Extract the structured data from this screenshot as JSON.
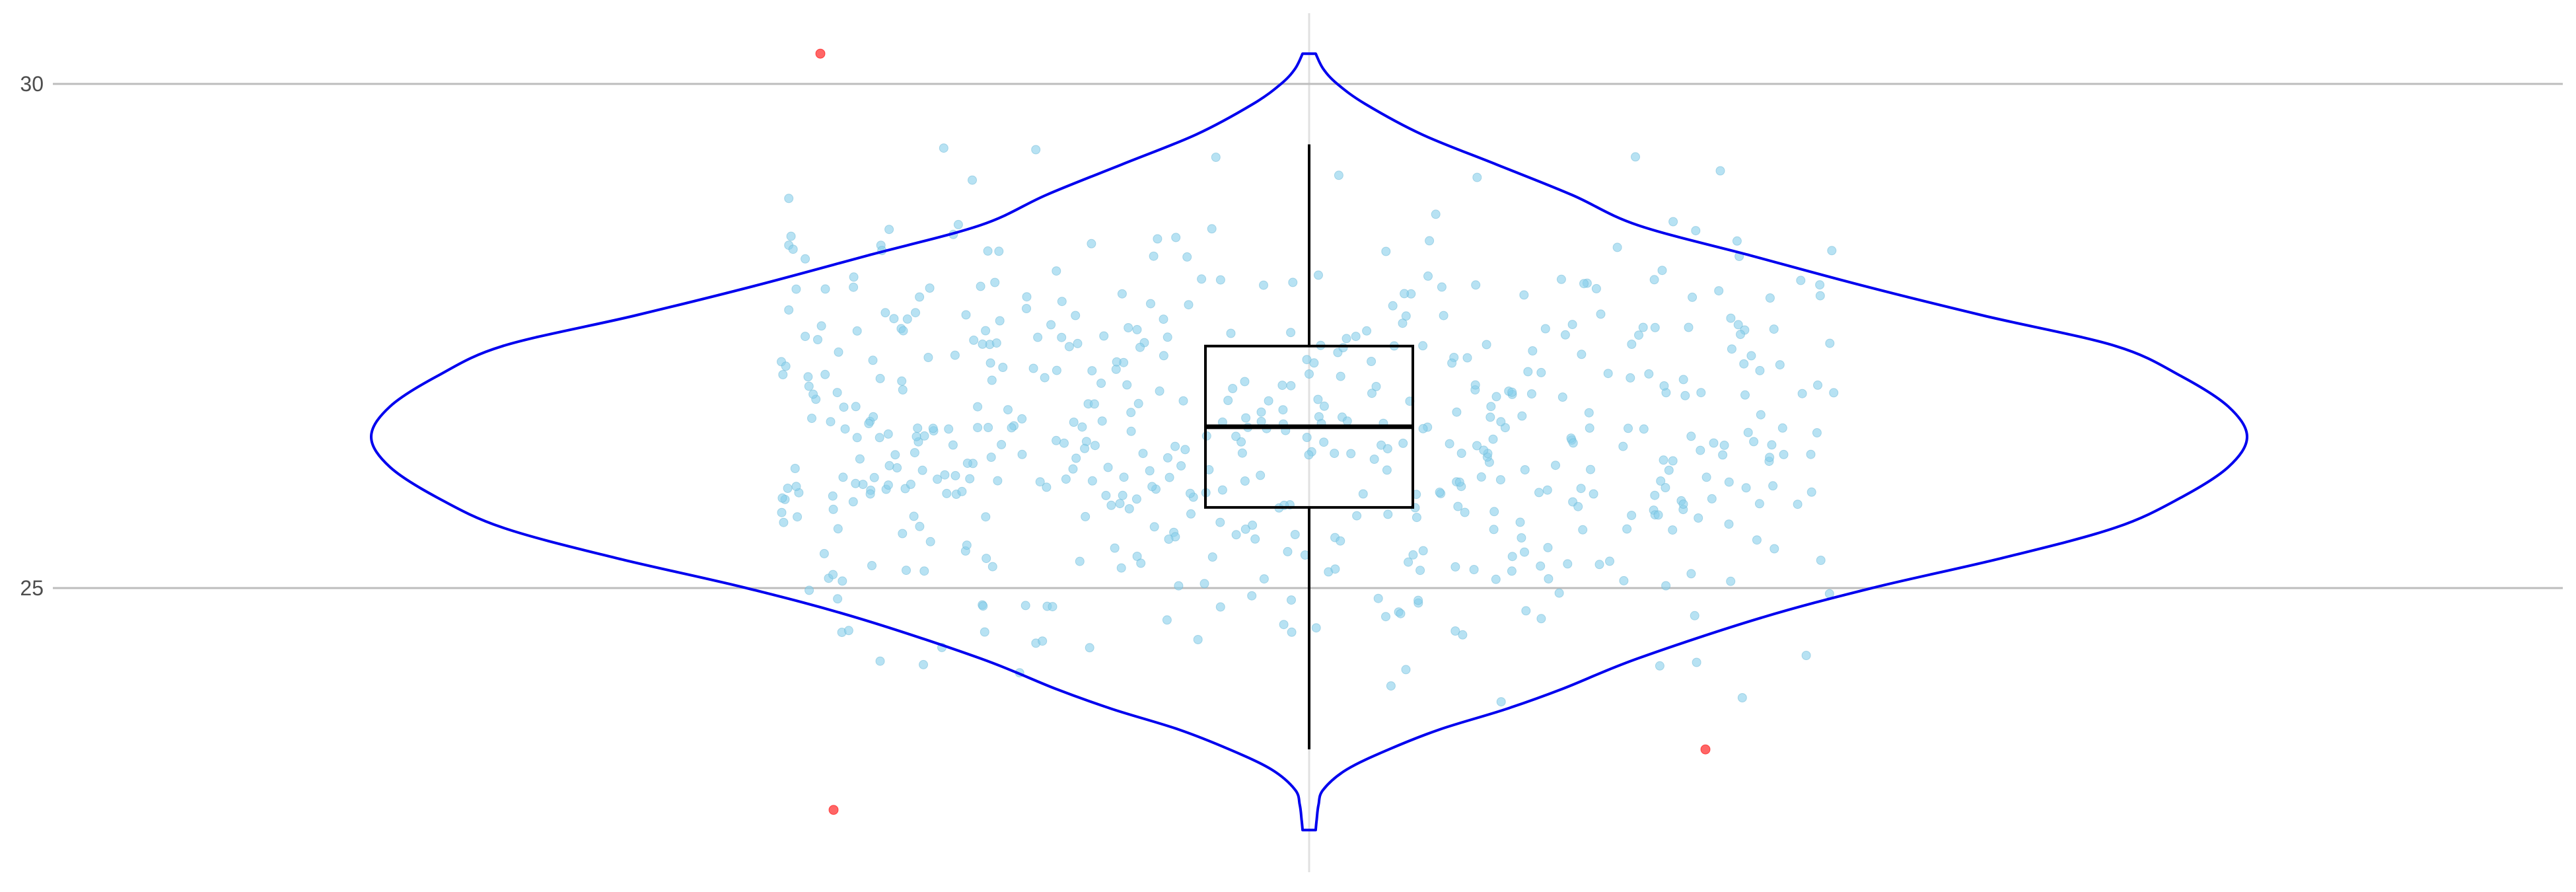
{
  "chart_data": {
    "type": "violin",
    "title": "",
    "xlabel": "",
    "ylabel": "",
    "ylim": [
      22.6,
      30.7
    ],
    "y_ticks": [
      {
        "value": 25,
        "label": "25"
      },
      {
        "value": 30,
        "label": "30"
      }
    ],
    "grid": {
      "horizontal_major": true,
      "vertical_center": true
    },
    "colors": {
      "violin_outline": "#0000ee",
      "points": "#87ceeb",
      "outliers": "#ff0000",
      "box": "#000000",
      "grid": "#bdbdbd",
      "center_line": "#e0e0e0"
    },
    "violin": {
      "y_min": 22.6,
      "y_max": 30.3,
      "density_profile": [
        [
          22.6,
          0.007
        ],
        [
          22.7,
          0.008
        ],
        [
          22.85,
          0.01
        ],
        [
          23.0,
          0.015
        ],
        [
          23.2,
          0.04
        ],
        [
          23.4,
          0.085
        ],
        [
          23.6,
          0.14
        ],
        [
          23.8,
          0.21
        ],
        [
          24.0,
          0.27
        ],
        [
          24.3,
          0.35
        ],
        [
          24.7,
          0.48
        ],
        [
          25.0,
          0.6
        ],
        [
          25.3,
          0.74
        ],
        [
          25.6,
          0.86
        ],
        [
          25.9,
          0.93
        ],
        [
          26.2,
          0.98
        ],
        [
          26.5,
          1.0
        ],
        [
          26.8,
          0.98
        ],
        [
          27.1,
          0.93
        ],
        [
          27.4,
          0.86
        ],
        [
          27.7,
          0.72
        ],
        [
          28.0,
          0.59
        ],
        [
          28.3,
          0.47
        ],
        [
          28.6,
          0.35
        ],
        [
          28.9,
          0.28
        ],
        [
          29.2,
          0.2
        ],
        [
          29.5,
          0.12
        ],
        [
          29.8,
          0.06
        ],
        [
          30.0,
          0.03
        ],
        [
          30.15,
          0.015
        ],
        [
          30.3,
          0.007
        ]
      ]
    },
    "box": {
      "q1": 25.8,
      "median": 26.6,
      "q3": 27.4,
      "whisker_low": 23.4,
      "whisker_high": 29.4
    },
    "outliers": [
      {
        "x_offset": -0.37,
        "y": 30.3
      },
      {
        "x_offset": -0.36,
        "y": 22.8
      },
      {
        "x_offset": 0.3,
        "y": 23.4
      }
    ],
    "jitter": {
      "n_points": 560,
      "mean": 26.5,
      "sd": 1.1,
      "x_spread": 0.4,
      "seed": 7
    }
  }
}
